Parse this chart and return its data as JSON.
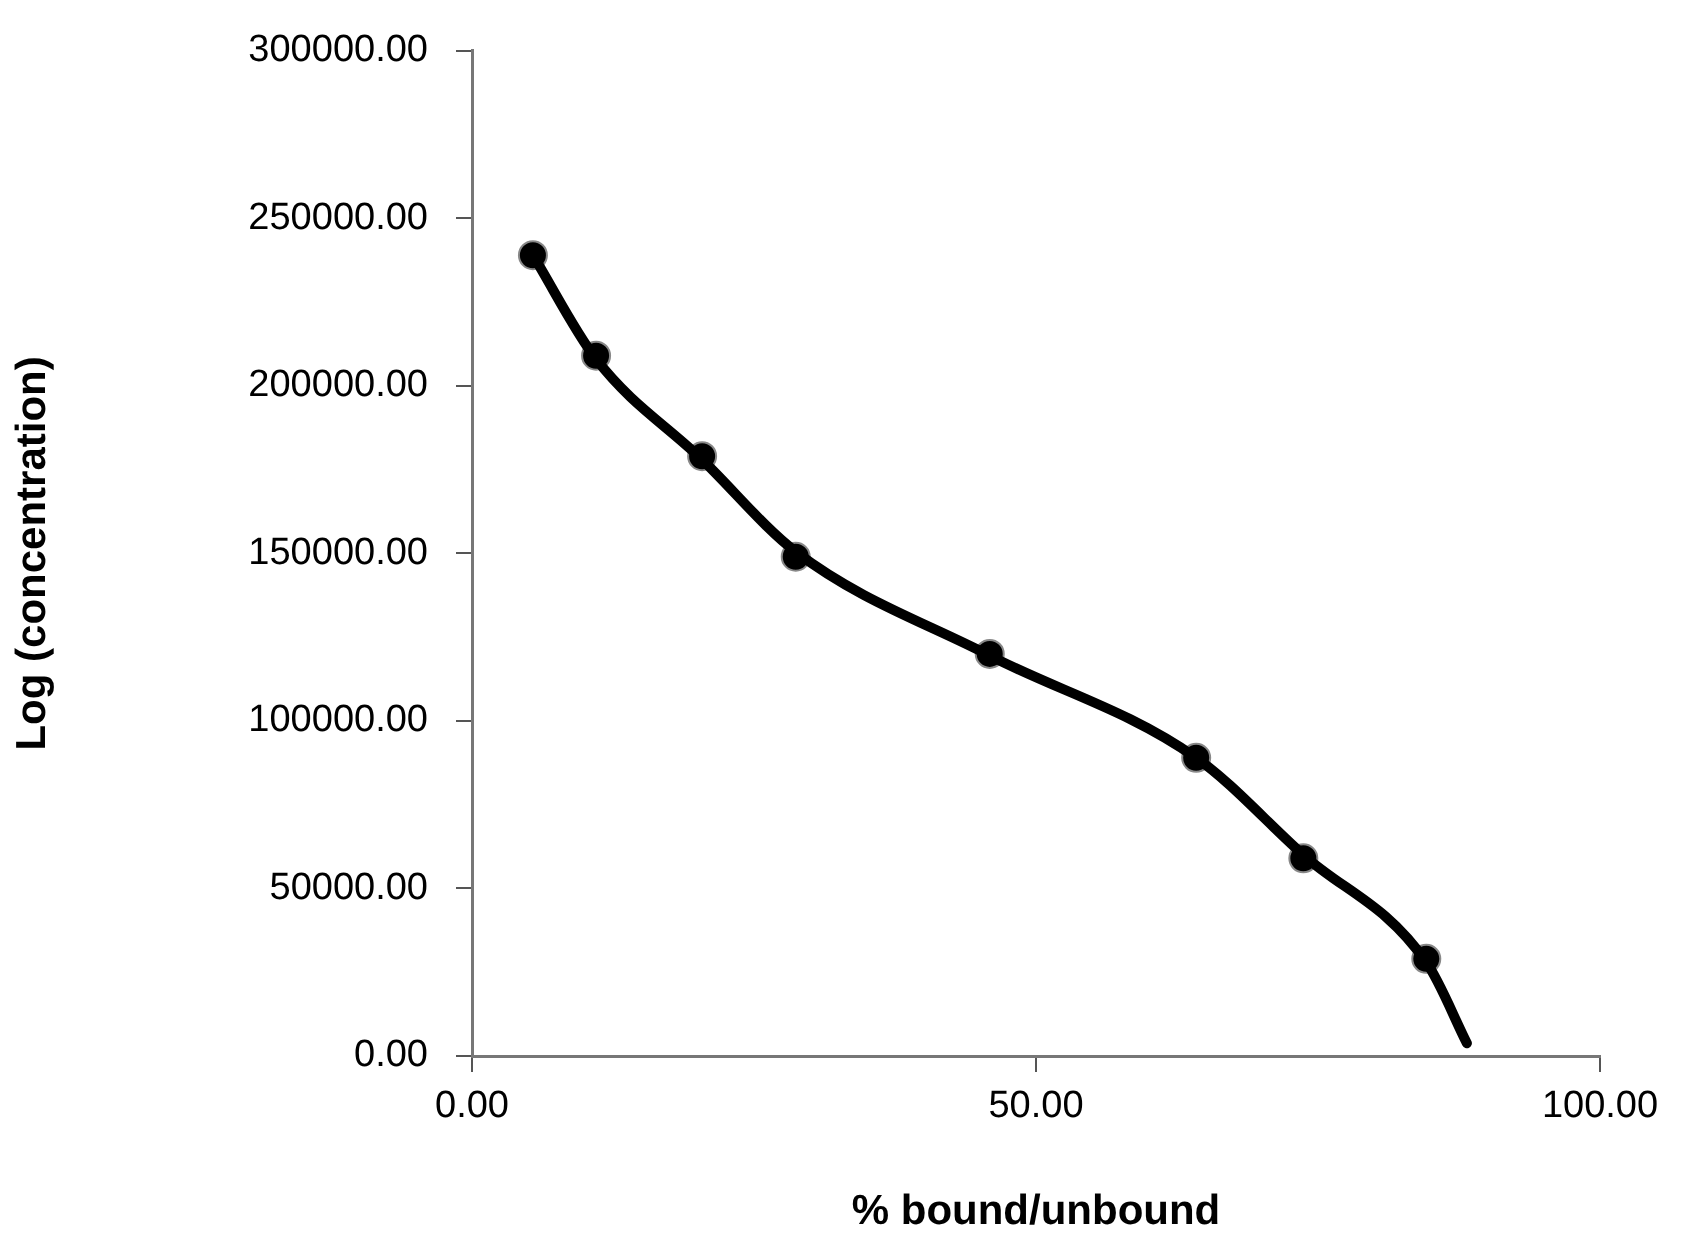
{
  "chart_data": {
    "type": "scatter",
    "xlabel": "% bound/unbound",
    "ylabel": "Log (concentration)",
    "xlim": [
      0,
      100
    ],
    "xticks": [
      {
        "value": 0,
        "label": "0.00"
      },
      {
        "value": 50,
        "label": "50.00"
      },
      {
        "value": 100,
        "label": "100.00"
      }
    ],
    "ylim": [
      0,
      300000
    ],
    "yticks": [
      {
        "value": 0,
        "label": "0.00"
      },
      {
        "value": 50000,
        "label": "50000.00"
      },
      {
        "value": 100000,
        "label": "100000.00"
      },
      {
        "value": 150000,
        "label": "150000.00"
      },
      {
        "value": 200000,
        "label": "200000.00"
      },
      {
        "value": 250000,
        "label": "250000.00"
      },
      {
        "value": 300000,
        "label": "300000.00"
      }
    ],
    "grid": false,
    "legend": false,
    "series": [
      {
        "color": "#000000",
        "marker": "circle",
        "x": [
          5.4,
          11.0,
          20.4,
          28.7,
          45.9,
          64.2,
          73.7,
          84.6
        ],
        "values": [
          239000,
          209000,
          179000,
          149000,
          120000,
          89000,
          59000,
          29000
        ]
      },
      {
        "type": "line",
        "color": "#000000",
        "marker": "none",
        "line_style": "solid",
        "x": [
          5.4,
          11,
          20.4,
          28.7,
          45.9,
          64.2,
          73.7,
          84.6,
          88.2
        ],
        "values": [
          239000,
          208000,
          178000,
          150500,
          119500,
          89000,
          60000,
          28000,
          3800
        ]
      }
    ]
  }
}
